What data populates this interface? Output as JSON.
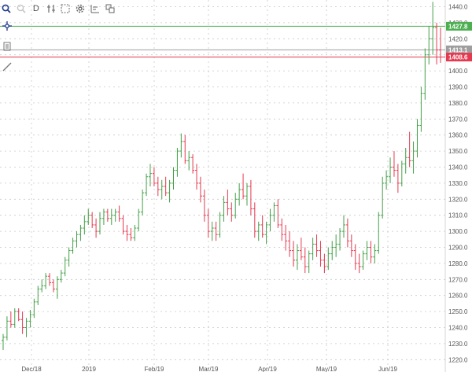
{
  "toolbar": {
    "zoom_in_label": "",
    "zoom_out_label": "",
    "timeframe_label": "D",
    "icons": [
      "zoom-in-icon",
      "zoom-out-icon",
      "timeframe-button",
      "indicators-icon",
      "selection-icon",
      "settings-icon",
      "chart-type-icon",
      "layout-icon"
    ]
  },
  "sidebar": {
    "tools": [
      "crosshair-icon",
      "note-icon",
      "draw-line-icon"
    ]
  },
  "colors": {
    "up": "#43a047",
    "down": "#e53950",
    "grid": "#c8c8c8",
    "price_line_green": "#4caf50",
    "price_line_red": "#e53950",
    "price_line_gray": "#9e9e9e"
  },
  "price_markers": [
    {
      "label": "1427.8",
      "value": 1427.8,
      "color": "#4caf50"
    },
    {
      "label": "1413.1",
      "value": 1413.1,
      "color": "#9e9e9e"
    },
    {
      "label": "1408.6",
      "value": 1408.6,
      "color": "#e53950"
    }
  ],
  "chart_data": {
    "type": "ohlc",
    "y_ticks": [
      1220,
      1230,
      1240,
      1250,
      1260,
      1270,
      1280,
      1290,
      1300,
      1310,
      1320,
      1330,
      1340,
      1350,
      1360,
      1370,
      1380,
      1390,
      1400,
      1410,
      1420,
      1430,
      1440
    ],
    "ylim": [
      1220,
      1444
    ],
    "x_labels": [
      "Dec/18",
      "2019",
      "Feb/19",
      "Mar/19",
      "Apr/19",
      "May/19",
      "Jun/19"
    ],
    "grid": true,
    "bars": [
      {
        "o": 1232,
        "h": 1236,
        "l": 1226,
        "c": 1234
      },
      {
        "o": 1234,
        "h": 1247,
        "l": 1232,
        "c": 1244
      },
      {
        "o": 1244,
        "h": 1250,
        "l": 1240,
        "c": 1242
      },
      {
        "o": 1242,
        "h": 1252,
        "l": 1240,
        "c": 1250
      },
      {
        "o": 1250,
        "h": 1252,
        "l": 1244,
        "c": 1245
      },
      {
        "o": 1245,
        "h": 1250,
        "l": 1236,
        "c": 1240
      },
      {
        "o": 1240,
        "h": 1246,
        "l": 1234,
        "c": 1244
      },
      {
        "o": 1244,
        "h": 1251,
        "l": 1240,
        "c": 1248
      },
      {
        "o": 1248,
        "h": 1258,
        "l": 1246,
        "c": 1256
      },
      {
        "o": 1256,
        "h": 1266,
        "l": 1254,
        "c": 1264
      },
      {
        "o": 1264,
        "h": 1270,
        "l": 1262,
        "c": 1266
      },
      {
        "o": 1266,
        "h": 1274,
        "l": 1264,
        "c": 1272
      },
      {
        "o": 1272,
        "h": 1274,
        "l": 1266,
        "c": 1268
      },
      {
        "o": 1268,
        "h": 1270,
        "l": 1262,
        "c": 1264
      },
      {
        "o": 1264,
        "h": 1272,
        "l": 1258,
        "c": 1270
      },
      {
        "o": 1270,
        "h": 1276,
        "l": 1268,
        "c": 1274
      },
      {
        "o": 1274,
        "h": 1284,
        "l": 1272,
        "c": 1282
      },
      {
        "o": 1282,
        "h": 1290,
        "l": 1278,
        "c": 1288
      },
      {
        "o": 1288,
        "h": 1296,
        "l": 1286,
        "c": 1294
      },
      {
        "o": 1294,
        "h": 1300,
        "l": 1290,
        "c": 1298
      },
      {
        "o": 1298,
        "h": 1304,
        "l": 1294,
        "c": 1302
      },
      {
        "o": 1302,
        "h": 1310,
        "l": 1298,
        "c": 1306
      },
      {
        "o": 1306,
        "h": 1314,
        "l": 1304,
        "c": 1310
      },
      {
        "o": 1310,
        "h": 1312,
        "l": 1302,
        "c": 1304
      },
      {
        "o": 1304,
        "h": 1308,
        "l": 1296,
        "c": 1300
      },
      {
        "o": 1300,
        "h": 1312,
        "l": 1298,
        "c": 1308
      },
      {
        "o": 1308,
        "h": 1314,
        "l": 1304,
        "c": 1312
      },
      {
        "o": 1312,
        "h": 1314,
        "l": 1306,
        "c": 1308
      },
      {
        "o": 1308,
        "h": 1314,
        "l": 1304,
        "c": 1310
      },
      {
        "o": 1310,
        "h": 1314,
        "l": 1306,
        "c": 1312
      },
      {
        "o": 1312,
        "h": 1316,
        "l": 1306,
        "c": 1308
      },
      {
        "o": 1308,
        "h": 1310,
        "l": 1298,
        "c": 1300
      },
      {
        "o": 1300,
        "h": 1304,
        "l": 1294,
        "c": 1298
      },
      {
        "o": 1298,
        "h": 1302,
        "l": 1294,
        "c": 1296
      },
      {
        "o": 1296,
        "h": 1304,
        "l": 1294,
        "c": 1302
      },
      {
        "o": 1302,
        "h": 1314,
        "l": 1300,
        "c": 1312
      },
      {
        "o": 1312,
        "h": 1326,
        "l": 1310,
        "c": 1324
      },
      {
        "o": 1324,
        "h": 1336,
        "l": 1322,
        "c": 1334
      },
      {
        "o": 1334,
        "h": 1342,
        "l": 1328,
        "c": 1336
      },
      {
        "o": 1336,
        "h": 1340,
        "l": 1328,
        "c": 1330
      },
      {
        "o": 1330,
        "h": 1334,
        "l": 1322,
        "c": 1326
      },
      {
        "o": 1326,
        "h": 1332,
        "l": 1320,
        "c": 1328
      },
      {
        "o": 1328,
        "h": 1334,
        "l": 1322,
        "c": 1324
      },
      {
        "o": 1324,
        "h": 1332,
        "l": 1318,
        "c": 1330
      },
      {
        "o": 1330,
        "h": 1340,
        "l": 1326,
        "c": 1338
      },
      {
        "o": 1338,
        "h": 1352,
        "l": 1334,
        "c": 1350
      },
      {
        "o": 1350,
        "h": 1361,
        "l": 1346,
        "c": 1356
      },
      {
        "o": 1356,
        "h": 1360,
        "l": 1342,
        "c": 1344
      },
      {
        "o": 1344,
        "h": 1350,
        "l": 1338,
        "c": 1346
      },
      {
        "o": 1346,
        "h": 1348,
        "l": 1336,
        "c": 1338
      },
      {
        "o": 1338,
        "h": 1342,
        "l": 1326,
        "c": 1330
      },
      {
        "o": 1330,
        "h": 1334,
        "l": 1318,
        "c": 1322
      },
      {
        "o": 1322,
        "h": 1326,
        "l": 1306,
        "c": 1310
      },
      {
        "o": 1310,
        "h": 1314,
        "l": 1296,
        "c": 1300
      },
      {
        "o": 1300,
        "h": 1306,
        "l": 1294,
        "c": 1302
      },
      {
        "o": 1302,
        "h": 1306,
        "l": 1294,
        "c": 1298
      },
      {
        "o": 1298,
        "h": 1312,
        "l": 1296,
        "c": 1310
      },
      {
        "o": 1310,
        "h": 1322,
        "l": 1306,
        "c": 1318
      },
      {
        "o": 1318,
        "h": 1326,
        "l": 1310,
        "c": 1314
      },
      {
        "o": 1314,
        "h": 1318,
        "l": 1306,
        "c": 1310
      },
      {
        "o": 1310,
        "h": 1324,
        "l": 1308,
        "c": 1320
      },
      {
        "o": 1320,
        "h": 1330,
        "l": 1316,
        "c": 1326
      },
      {
        "o": 1326,
        "h": 1336,
        "l": 1320,
        "c": 1322
      },
      {
        "o": 1322,
        "h": 1330,
        "l": 1316,
        "c": 1328
      },
      {
        "o": 1328,
        "h": 1332,
        "l": 1310,
        "c": 1314
      },
      {
        "o": 1314,
        "h": 1318,
        "l": 1296,
        "c": 1300
      },
      {
        "o": 1300,
        "h": 1306,
        "l": 1294,
        "c": 1304
      },
      {
        "o": 1304,
        "h": 1310,
        "l": 1296,
        "c": 1298
      },
      {
        "o": 1298,
        "h": 1306,
        "l": 1292,
        "c": 1304
      },
      {
        "o": 1304,
        "h": 1314,
        "l": 1300,
        "c": 1310
      },
      {
        "o": 1310,
        "h": 1318,
        "l": 1306,
        "c": 1316
      },
      {
        "o": 1316,
        "h": 1320,
        "l": 1302,
        "c": 1304
      },
      {
        "o": 1304,
        "h": 1308,
        "l": 1294,
        "c": 1298
      },
      {
        "o": 1298,
        "h": 1304,
        "l": 1288,
        "c": 1294
      },
      {
        "o": 1294,
        "h": 1300,
        "l": 1284,
        "c": 1288
      },
      {
        "o": 1288,
        "h": 1294,
        "l": 1278,
        "c": 1282
      },
      {
        "o": 1282,
        "h": 1292,
        "l": 1276,
        "c": 1288
      },
      {
        "o": 1288,
        "h": 1296,
        "l": 1282,
        "c": 1284
      },
      {
        "o": 1284,
        "h": 1290,
        "l": 1274,
        "c": 1278
      },
      {
        "o": 1278,
        "h": 1288,
        "l": 1274,
        "c": 1286
      },
      {
        "o": 1286,
        "h": 1296,
        "l": 1282,
        "c": 1292
      },
      {
        "o": 1292,
        "h": 1298,
        "l": 1284,
        "c": 1288
      },
      {
        "o": 1288,
        "h": 1294,
        "l": 1278,
        "c": 1282
      },
      {
        "o": 1282,
        "h": 1286,
        "l": 1274,
        "c": 1278
      },
      {
        "o": 1278,
        "h": 1290,
        "l": 1276,
        "c": 1286
      },
      {
        "o": 1286,
        "h": 1294,
        "l": 1282,
        "c": 1290
      },
      {
        "o": 1290,
        "h": 1298,
        "l": 1284,
        "c": 1292
      },
      {
        "o": 1292,
        "h": 1302,
        "l": 1288,
        "c": 1300
      },
      {
        "o": 1300,
        "h": 1310,
        "l": 1296,
        "c": 1304
      },
      {
        "o": 1304,
        "h": 1308,
        "l": 1290,
        "c": 1294
      },
      {
        "o": 1294,
        "h": 1298,
        "l": 1284,
        "c": 1288
      },
      {
        "o": 1288,
        "h": 1292,
        "l": 1276,
        "c": 1280
      },
      {
        "o": 1280,
        "h": 1286,
        "l": 1274,
        "c": 1278
      },
      {
        "o": 1278,
        "h": 1288,
        "l": 1276,
        "c": 1286
      },
      {
        "o": 1286,
        "h": 1294,
        "l": 1282,
        "c": 1290
      },
      {
        "o": 1290,
        "h": 1294,
        "l": 1280,
        "c": 1284
      },
      {
        "o": 1284,
        "h": 1292,
        "l": 1280,
        "c": 1288
      },
      {
        "o": 1288,
        "h": 1312,
        "l": 1286,
        "c": 1310
      },
      {
        "o": 1310,
        "h": 1334,
        "l": 1308,
        "c": 1330
      },
      {
        "o": 1330,
        "h": 1338,
        "l": 1326,
        "c": 1334
      },
      {
        "o": 1334,
        "h": 1346,
        "l": 1330,
        "c": 1340
      },
      {
        "o": 1340,
        "h": 1350,
        "l": 1334,
        "c": 1338
      },
      {
        "o": 1338,
        "h": 1342,
        "l": 1324,
        "c": 1330
      },
      {
        "o": 1330,
        "h": 1344,
        "l": 1328,
        "c": 1342
      },
      {
        "o": 1342,
        "h": 1352,
        "l": 1336,
        "c": 1346
      },
      {
        "o": 1346,
        "h": 1362,
        "l": 1340,
        "c": 1344
      },
      {
        "o": 1344,
        "h": 1356,
        "l": 1336,
        "c": 1350
      },
      {
        "o": 1350,
        "h": 1370,
        "l": 1346,
        "c": 1366
      },
      {
        "o": 1366,
        "h": 1390,
        "l": 1362,
        "c": 1386
      },
      {
        "o": 1386,
        "h": 1414,
        "l": 1382,
        "c": 1410
      },
      {
        "o": 1410,
        "h": 1428,
        "l": 1404,
        "c": 1420
      },
      {
        "o": 1420,
        "h": 1443,
        "l": 1410,
        "c": 1427
      },
      {
        "o": 1427,
        "h": 1430,
        "l": 1404,
        "c": 1413
      },
      {
        "o": 1413,
        "h": 1427,
        "l": 1405,
        "c": 1408.6
      }
    ]
  }
}
